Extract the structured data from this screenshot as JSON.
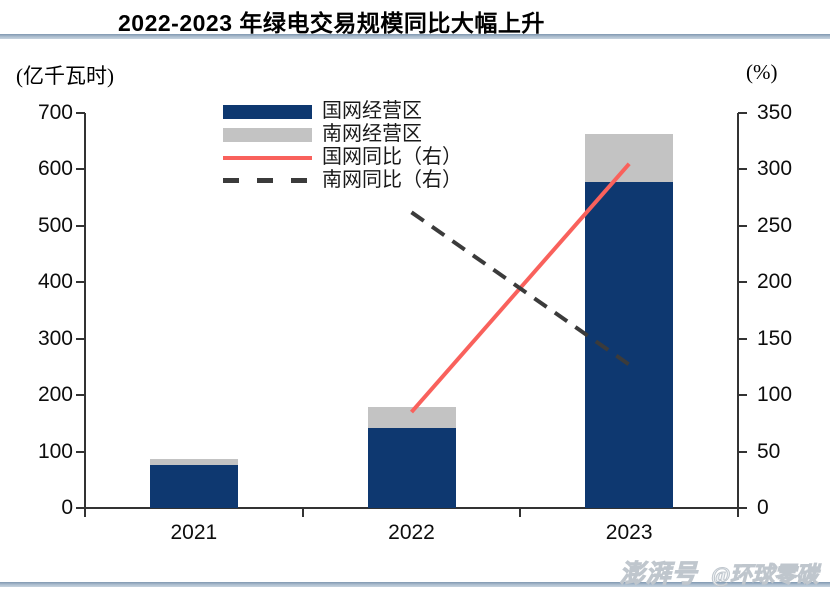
{
  "chart_data": {
    "type": "combo-stacked-bar-line",
    "title": "2022-2023 年绿电交易规模同比大幅上升",
    "categories": [
      "2021",
      "2022",
      "2023"
    ],
    "stacked": true,
    "bar_series": [
      {
        "name": "国网经营区",
        "color": "#0e3870",
        "values": [
          76,
          142,
          578
        ]
      },
      {
        "name": "南网经营区",
        "color": "#c3c3c3",
        "values": [
          11,
          37,
          84
        ]
      }
    ],
    "line_series": [
      {
        "name": "国网同比（右）",
        "color": "#f9615c",
        "style": "solid",
        "axis": "right",
        "values": [
          null,
          85,
          305
        ]
      },
      {
        "name": "南网同比（右）",
        "color": "#3b3b3b",
        "style": "dashed",
        "axis": "right",
        "values": [
          null,
          262,
          127
        ]
      }
    ],
    "left_axis": {
      "unit": "(亿千瓦时)",
      "min": 0,
      "max": 700,
      "ticks": [
        0,
        100,
        200,
        300,
        400,
        500,
        600,
        700
      ]
    },
    "right_axis": {
      "unit": "(%)",
      "min": 0,
      "max": 350,
      "ticks": [
        0,
        50,
        100,
        150,
        200,
        250,
        300,
        350
      ]
    },
    "grid": false,
    "legend_position": "top-left-inside"
  },
  "watermark": {
    "platform": "澎湃号",
    "account": "@环球零碳"
  }
}
